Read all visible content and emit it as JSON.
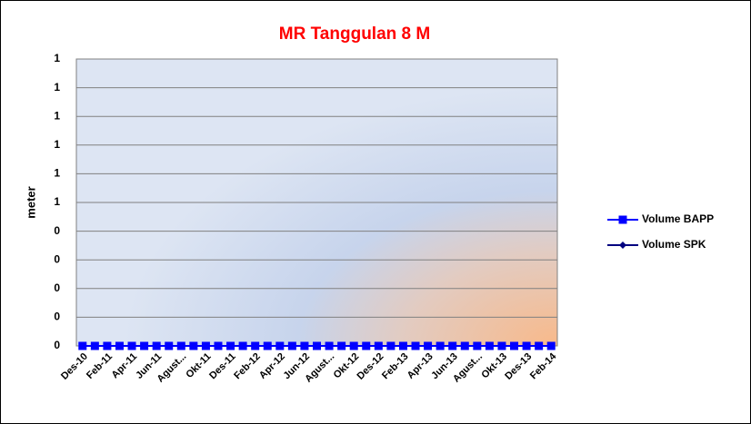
{
  "chart_data": {
    "type": "line",
    "title": "MR Tanggulan 8 M",
    "y_label": "meter",
    "categories": [
      "Des-10",
      null,
      "Feb-11",
      null,
      "Apr-11",
      null,
      "Jun-11",
      null,
      "Agust...",
      null,
      "Okt-11",
      null,
      "Des-11",
      null,
      "Feb-12",
      null,
      "Apr-12",
      null,
      "Jun-12",
      null,
      "Agust...",
      null,
      "Okt-12",
      null,
      "Des-12",
      null,
      "Feb-13",
      null,
      "Apr-13",
      null,
      "Jun-13",
      null,
      "Agust...",
      null,
      "Okt-13",
      null,
      "Des-13",
      null,
      "Feb-14"
    ],
    "series": [
      {
        "name": "Volume BAPP",
        "color": "#0000ff",
        "marker": "square",
        "values": [
          0,
          0,
          0,
          0,
          0,
          0,
          0,
          0,
          0,
          0,
          0,
          0,
          0,
          0,
          0,
          0,
          0,
          0,
          0,
          0,
          0,
          0,
          0,
          0,
          0,
          0,
          0,
          0,
          0,
          0,
          0,
          0,
          0,
          0,
          0,
          0,
          0,
          0,
          0
        ]
      },
      {
        "name": "Volume SPK",
        "color": "#000080",
        "marker": "diamond",
        "values": [
          0,
          0,
          0,
          0,
          0,
          0,
          0,
          0,
          0,
          0,
          0,
          0,
          0,
          0,
          0,
          0,
          0,
          0,
          0,
          0,
          0,
          0,
          0,
          0,
          0,
          0,
          0,
          0,
          0,
          0,
          0,
          0,
          0,
          0,
          0,
          0,
          0,
          0,
          0
        ]
      }
    ],
    "ylim": [
      0,
      1
    ],
    "yticks": [
      0,
      {
        "value": 0.1,
        "label": "0"
      },
      {
        "value": 0.2,
        "label": "0"
      },
      {
        "value": 0.3,
        "label": "0"
      },
      {
        "value": 0.4,
        "label": "0"
      },
      {
        "value": 0.5,
        "label": "1"
      },
      {
        "value": 0.6,
        "label": "1"
      },
      {
        "value": 0.7,
        "label": "1"
      },
      {
        "value": 0.8,
        "label": "1"
      },
      {
        "value": 0.9,
        "label": "1"
      },
      1
    ],
    "grid": true,
    "legend": "right"
  }
}
